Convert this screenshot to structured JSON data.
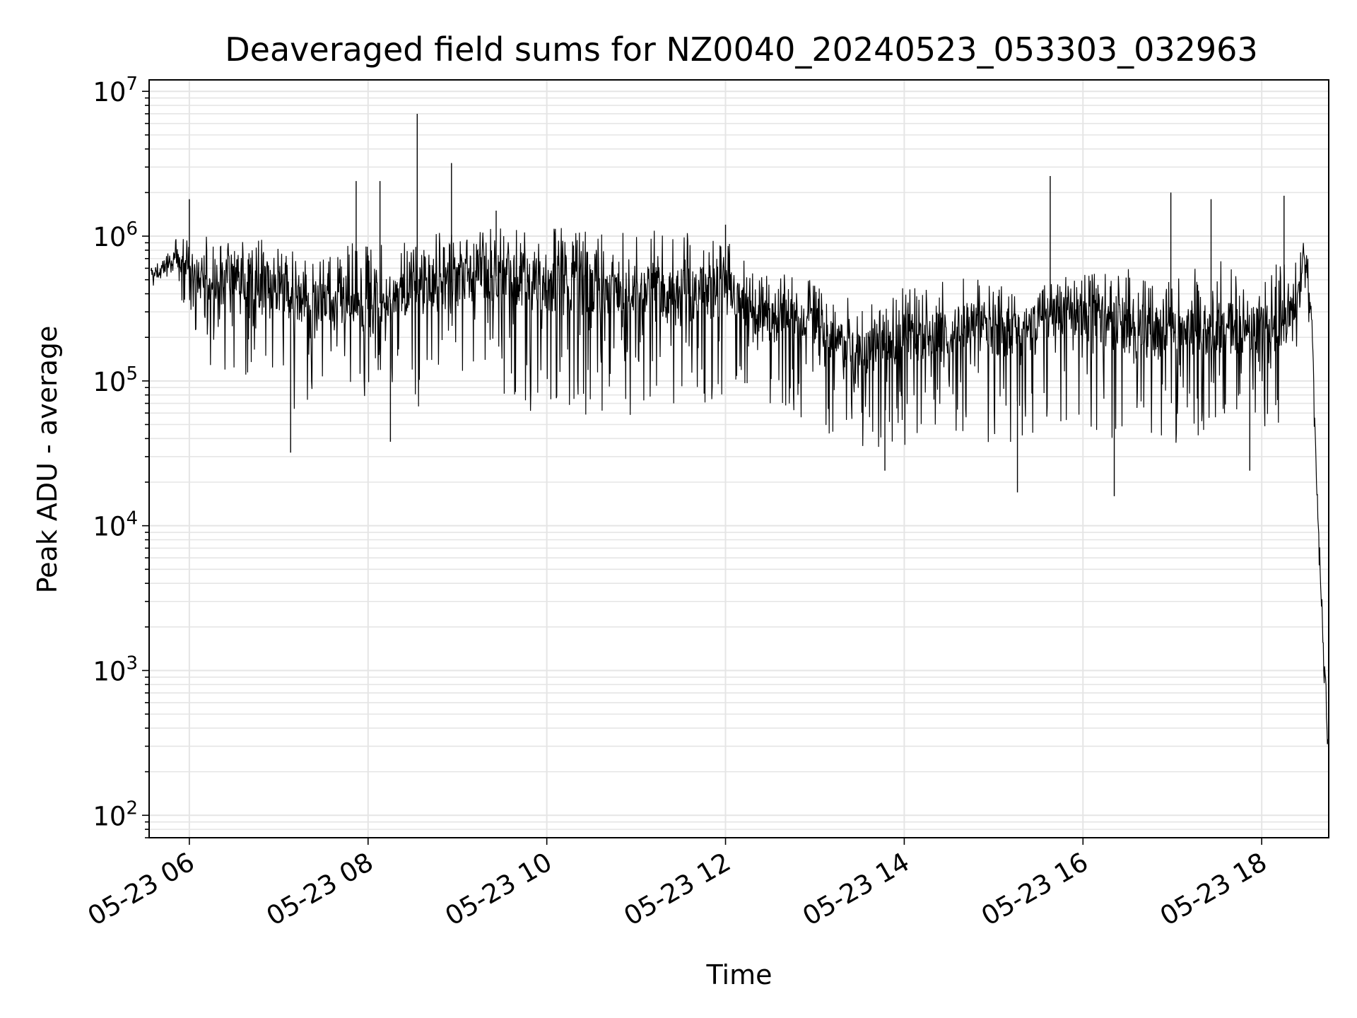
{
  "chart_data": {
    "type": "line",
    "title": "Deaveraged field sums for NZ0040_20240523_053303_032963",
    "xlabel": "Time",
    "ylabel": "Peak ADU - average",
    "yscale": "log",
    "ylim": [
      70,
      12000000
    ],
    "xlim": [
      "2024-05-23T05:33",
      "2024-05-23T18:45"
    ],
    "grid": true,
    "line_color": "#000000",
    "grid_color": "#e5e5e5",
    "x_ticks": [
      {
        "t": "2024-05-23T06:00",
        "label": "05-23 06"
      },
      {
        "t": "2024-05-23T08:00",
        "label": "05-23 08"
      },
      {
        "t": "2024-05-23T10:00",
        "label": "05-23 10"
      },
      {
        "t": "2024-05-23T12:00",
        "label": "05-23 12"
      },
      {
        "t": "2024-05-23T14:00",
        "label": "05-23 14"
      },
      {
        "t": "2024-05-23T16:00",
        "label": "05-23 16"
      },
      {
        "t": "2024-05-23T18:00",
        "label": "05-23 18"
      }
    ],
    "y_ticks": [
      {
        "value": 100,
        "base": "10",
        "exp": "2"
      },
      {
        "value": 1000,
        "base": "10",
        "exp": "3"
      },
      {
        "value": 10000,
        "base": "10",
        "exp": "4"
      },
      {
        "value": 100000,
        "base": "10",
        "exp": "5"
      },
      {
        "value": 1000000,
        "base": "10",
        "exp": "6"
      },
      {
        "value": 10000000,
        "base": "10",
        "exp": "7"
      }
    ],
    "series": [
      {
        "x": [
          "2024-05-23T05:34",
          "2024-05-23T05:40",
          "2024-05-23T05:50",
          "2024-05-23T05:55",
          "2024-05-23T06:00",
          "2024-05-23T06:10",
          "2024-05-23T06:20",
          "2024-05-23T06:30",
          "2024-05-23T06:40",
          "2024-05-23T06:50",
          "2024-05-23T07:00",
          "2024-05-23T07:10",
          "2024-05-23T07:20",
          "2024-05-23T07:30",
          "2024-05-23T07:40",
          "2024-05-23T07:50",
          "2024-05-23T08:00",
          "2024-05-23T08:10",
          "2024-05-23T08:20",
          "2024-05-23T08:30",
          "2024-05-23T08:40",
          "2024-05-23T08:50",
          "2024-05-23T09:00",
          "2024-05-23T09:15",
          "2024-05-23T09:30",
          "2024-05-23T09:45",
          "2024-05-23T10:00",
          "2024-05-23T10:15",
          "2024-05-23T10:30",
          "2024-05-23T10:45",
          "2024-05-23T11:00",
          "2024-05-23T11:15",
          "2024-05-23T11:30",
          "2024-05-23T11:45",
          "2024-05-23T11:55",
          "2024-05-23T12:05",
          "2024-05-23T12:15",
          "2024-05-23T12:30",
          "2024-05-23T12:45",
          "2024-05-23T13:00",
          "2024-05-23T13:15",
          "2024-05-23T13:30",
          "2024-05-23T13:45",
          "2024-05-23T14:00",
          "2024-05-23T14:15",
          "2024-05-23T14:30",
          "2024-05-23T14:45",
          "2024-05-23T15:00",
          "2024-05-23T15:15",
          "2024-05-23T15:30",
          "2024-05-23T15:45",
          "2024-05-23T16:00",
          "2024-05-23T16:15",
          "2024-05-23T16:30",
          "2024-05-23T16:45",
          "2024-05-23T17:00",
          "2024-05-23T17:15",
          "2024-05-23T17:30",
          "2024-05-23T17:45",
          "2024-05-23T18:00",
          "2024-05-23T18:15",
          "2024-05-23T18:25",
          "2024-05-23T18:28",
          "2024-05-23T18:31",
          "2024-05-23T18:34",
          "2024-05-23T18:37",
          "2024-05-23T18:40",
          "2024-05-23T18:43",
          "2024-05-23T18:45"
        ],
        "median": [
          550000,
          550000,
          700000,
          650000,
          550000,
          500000,
          450000,
          550000,
          500000,
          450000,
          400000,
          380000,
          350000,
          350000,
          300000,
          300000,
          320000,
          350000,
          380000,
          400000,
          420000,
          450000,
          500000,
          520000,
          530000,
          500000,
          480000,
          450000,
          420000,
          420000,
          400000,
          380000,
          380000,
          400000,
          500000,
          420000,
          300000,
          250000,
          300000,
          250000,
          180000,
          150000,
          180000,
          200000,
          200000,
          220000,
          250000,
          220000,
          200000,
          250000,
          300000,
          280000,
          250000,
          220000,
          200000,
          220000,
          200000,
          250000,
          220000,
          220000,
          250000,
          350000,
          800000,
          500000,
          200000,
          20000,
          3000,
          800,
          250
        ],
        "low": [
          450000,
          450000,
          550000,
          300000,
          250000,
          150000,
          100000,
          100000,
          80000,
          80000,
          70000,
          60000,
          70000,
          80000,
          80000,
          70000,
          80000,
          90000,
          80000,
          70000,
          60000,
          80000,
          100000,
          90000,
          70000,
          60000,
          60000,
          55000,
          55000,
          55000,
          55000,
          50000,
          55000,
          60000,
          80000,
          80000,
          80000,
          60000,
          55000,
          50000,
          40000,
          35000,
          30000,
          35000,
          40000,
          45000,
          40000,
          35000,
          35000,
          40000,
          50000,
          45000,
          40000,
          35000,
          40000,
          35000,
          40000,
          40000,
          45000,
          40000,
          50000,
          100000,
          500000,
          300000,
          100000,
          15000,
          2000,
          500,
          200
        ],
        "high": [
          650000,
          700000,
          950000,
          1000000,
          950000,
          1000000,
          1000000,
          1000000,
          1000000,
          950000,
          900000,
          800000,
          700000,
          750000,
          800000,
          900000,
          850000,
          950000,
          1000000,
          1000000,
          1050000,
          1100000,
          1100000,
          1150000,
          1150000,
          1200000,
          1200000,
          1150000,
          1150000,
          1100000,
          1100000,
          1100000,
          1100000,
          1100000,
          1200000,
          900000,
          650000,
          550000,
          600000,
          500000,
          400000,
          350000,
          400000,
          450000,
          450000,
          500000,
          550000,
          500000,
          450000,
          450000,
          550000,
          550000,
          650000,
          600000,
          500000,
          550000,
          600000,
          700000,
          600000,
          550000,
          700000,
          800000,
          900000,
          700000,
          250000,
          25000,
          4000,
          1200,
          300
        ],
        "spikes": [
          {
            "t": "2024-05-23T06:00",
            "v": 1800000
          },
          {
            "t": "2024-05-23T07:52",
            "v": 2400000
          },
          {
            "t": "2024-05-23T08:08",
            "v": 2400000
          },
          {
            "t": "2024-05-23T08:33",
            "v": 7000000
          },
          {
            "t": "2024-05-23T08:56",
            "v": 3200000
          },
          {
            "t": "2024-05-23T09:26",
            "v": 1500000
          },
          {
            "t": "2024-05-23T12:00",
            "v": 1200000
          },
          {
            "t": "2024-05-23T15:38",
            "v": 2600000
          },
          {
            "t": "2024-05-23T16:59",
            "v": 2000000
          },
          {
            "t": "2024-05-23T17:26",
            "v": 1800000
          },
          {
            "t": "2024-05-23T18:15",
            "v": 1900000
          }
        ],
        "dips": [
          {
            "t": "2024-05-23T07:08",
            "v": 32000
          },
          {
            "t": "2024-05-23T08:15",
            "v": 38000
          },
          {
            "t": "2024-05-23T13:47",
            "v": 24000
          },
          {
            "t": "2024-05-23T15:16",
            "v": 17000
          },
          {
            "t": "2024-05-23T16:21",
            "v": 16000
          },
          {
            "t": "2024-05-23T17:52",
            "v": 24000
          }
        ]
      }
    ]
  }
}
